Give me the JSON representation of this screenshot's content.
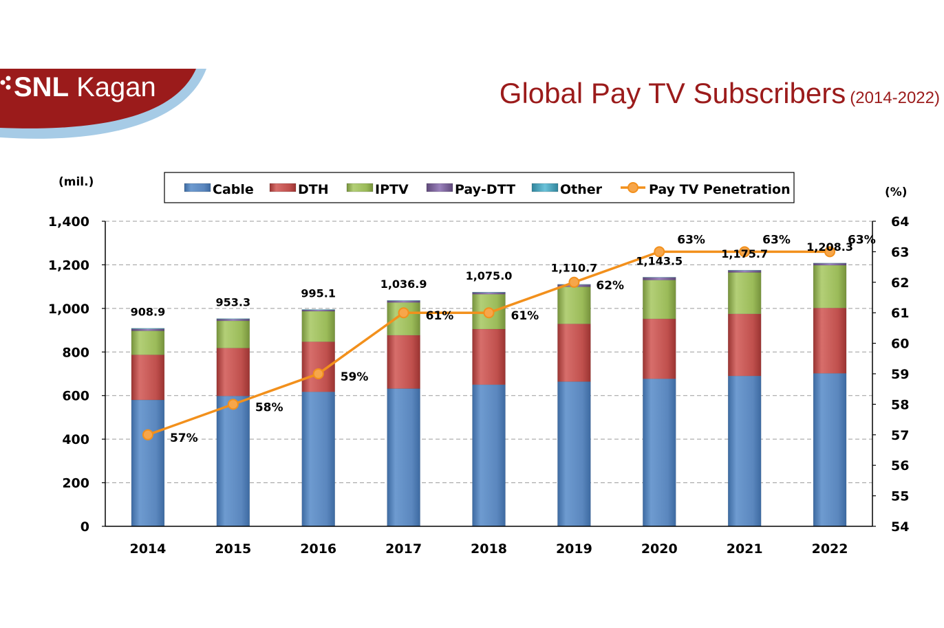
{
  "logo": {
    "text_bold": "SNL",
    "text_light": "Kagan"
  },
  "header": {
    "title": "Global Pay TV Subscribers",
    "subtitle": "(2014-2022)"
  },
  "colors": {
    "cable": "#5b87be",
    "dth": "#c0504d",
    "iptv": "#9bbb59",
    "paydtt": "#8064a2",
    "other": "#4bacc6",
    "penetration": "#f2901c",
    "title": "#9b1b1b"
  },
  "chart_data": {
    "type": "bar",
    "stacked": true,
    "categories": [
      "2014",
      "2015",
      "2016",
      "2017",
      "2018",
      "2019",
      "2020",
      "2021",
      "2022"
    ],
    "series": [
      {
        "name": "Cable",
        "values": [
          580,
          598,
          617,
          632,
          650,
          664,
          677,
          690,
          702
        ]
      },
      {
        "name": "DTH",
        "values": [
          207,
          220,
          230,
          245,
          255,
          265,
          275,
          285,
          300
        ]
      },
      {
        "name": "IPTV",
        "values": [
          110,
          125,
          140,
          150,
          160,
          170,
          178,
          190,
          196
        ]
      },
      {
        "name": "Pay-DTT",
        "values": [
          9,
          8,
          6,
          8,
          8,
          10,
          12,
          9,
          9
        ]
      },
      {
        "name": "Other",
        "values": [
          2.9,
          2.3,
          2.1,
          1.9,
          2.0,
          1.7,
          1.5,
          1.7,
          1.3
        ]
      }
    ],
    "totals": [
      "908.9",
      "953.3",
      "995.1",
      "1,036.9",
      "1,075.0",
      "1,110.7",
      "1,143.5",
      "1,175.7",
      "1,208.3"
    ],
    "line": {
      "name": "Pay TV Penetration",
      "values": [
        57,
        58,
        59,
        61,
        61,
        62,
        63,
        63,
        63
      ],
      "labels": [
        "57%",
        "58%",
        "59%",
        "61%",
        "61%",
        "62%",
        "63%",
        "63%",
        "63%"
      ]
    },
    "ylabel_left": "(mil.)",
    "ylabel_right": "(%)",
    "ylim_left": [
      0,
      1400
    ],
    "yticks_left": [
      "0",
      "200",
      "400",
      "600",
      "800",
      "1,000",
      "1,200",
      "1,400"
    ],
    "ylim_right": [
      54,
      64
    ],
    "yticks_right": [
      "54",
      "55",
      "56",
      "57",
      "58",
      "59",
      "60",
      "61",
      "62",
      "63",
      "64"
    ],
    "grid": true,
    "legend": "top"
  }
}
